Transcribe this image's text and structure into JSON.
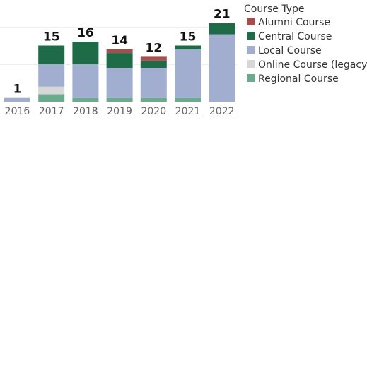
{
  "chart_data": {
    "type": "bar",
    "stacked": true,
    "categories": [
      "2016",
      "2017",
      "2018",
      "2019",
      "2020",
      "2021",
      "2022"
    ],
    "series": [
      {
        "name": "Regional Course",
        "color": "#6aab8e",
        "values": [
          0,
          2,
          1,
          1,
          1,
          1,
          0
        ]
      },
      {
        "name": "Online Course (legacy)",
        "color": "#d7d7d7",
        "values": [
          0,
          2,
          0,
          0,
          0,
          0,
          0
        ]
      },
      {
        "name": "Local Course",
        "color": "#a2aed0",
        "values": [
          1,
          6,
          9,
          8,
          8,
          13,
          18
        ]
      },
      {
        "name": "Central Course",
        "color": "#1e6b48",
        "values": [
          0,
          5,
          6,
          4,
          2,
          1,
          3
        ]
      },
      {
        "name": "Alumni Course",
        "color": "#a84d4d",
        "values": [
          0,
          0,
          0,
          1,
          1,
          0,
          0
        ]
      }
    ],
    "totals": [
      "1",
      "15",
      "16",
      "14",
      "12",
      "15",
      "21"
    ],
    "legend": {
      "title": "Course Type",
      "position": "right",
      "entries": [
        "Alumni Course",
        "Central Course",
        "Local Course",
        "Online Course (legacy)",
        "Regional Course"
      ]
    },
    "ylim": [
      0,
      21
    ],
    "grid": true,
    "title": "",
    "xlabel": "",
    "ylabel": ""
  }
}
